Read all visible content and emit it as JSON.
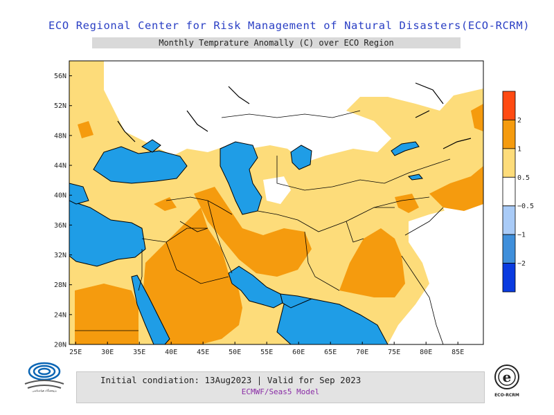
{
  "header": {
    "title": "ECO Regional Center for Risk Management of Natural Disasters(ECO-RCRM)",
    "subtitle": "Monthly Temprature Anomally (C) over ECO Region"
  },
  "map": {
    "lon_range": [
      24,
      89
    ],
    "lat_range": [
      20,
      58
    ],
    "lat_ticks": [
      "56N",
      "52N",
      "48N",
      "44N",
      "40N",
      "36N",
      "32N",
      "28N",
      "24N",
      "20N"
    ],
    "lon_ticks": [
      "25E",
      "30E",
      "35E",
      "40E",
      "45E",
      "50E",
      "55E",
      "60E",
      "65E",
      "70E",
      "75E",
      "80E",
      "85E"
    ],
    "colors": {
      "water": "#1f9de6",
      "anom_0_5_to_1": "#fddc7a",
      "anom_1_to_2": "#f59b0e",
      "neutral": "#ffffff",
      "border": "#000000"
    }
  },
  "legend": {
    "labels": [
      "2",
      "1",
      "0.5",
      "−0.5",
      "−1",
      "−2"
    ],
    "bins": [
      {
        "color": "#ff4a12"
      },
      {
        "color": "#f59b0e"
      },
      {
        "color": "#fddc7a"
      },
      {
        "color": "#ffffff"
      },
      {
        "color": "#a9cbf7"
      },
      {
        "color": "#3f8fdb"
      },
      {
        "color": "#0a3be0"
      }
    ]
  },
  "footer": {
    "line1": "Initial condiation: 13Aug2023 | Valid for Sep 2023",
    "line2": "ECMWF/Seas5 Model"
  },
  "logos": {
    "left_caption": "پژوهشگاه هواشناسی",
    "right_caption": "ECO-RCRM",
    "right_letter": "e"
  }
}
